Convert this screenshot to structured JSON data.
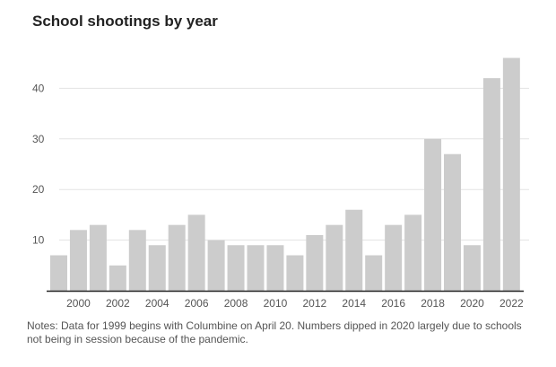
{
  "chart_data": {
    "type": "bar",
    "title": "School shootings by year",
    "xlabel": "",
    "ylabel": "",
    "ylim": [
      0,
      47
    ],
    "grid": true,
    "categories": [
      "1999",
      "2000",
      "2001",
      "2002",
      "2003",
      "2004",
      "2005",
      "2006",
      "2007",
      "2008",
      "2009",
      "2010",
      "2011",
      "2012",
      "2013",
      "2014",
      "2015",
      "2016",
      "2017",
      "2018",
      "2019",
      "2020",
      "2021",
      "2022"
    ],
    "values": [
      7,
      12,
      13,
      5,
      12,
      9,
      13,
      15,
      10,
      9,
      9,
      9,
      7,
      11,
      13,
      16,
      7,
      13,
      15,
      30,
      27,
      9,
      42,
      46
    ],
    "yticks": [
      10,
      20,
      30,
      40
    ],
    "xtick_labels": [
      "2000",
      "2002",
      "2004",
      "2006",
      "2008",
      "2010",
      "2012",
      "2014",
      "2016",
      "2018",
      "2020",
      "2022"
    ],
    "bar_color": "#cccccc",
    "notes": "Notes: Data for 1999 begins with Columbine on April 20. Numbers dipped in 2020 largely due to schools not being in session because of the pandemic."
  }
}
